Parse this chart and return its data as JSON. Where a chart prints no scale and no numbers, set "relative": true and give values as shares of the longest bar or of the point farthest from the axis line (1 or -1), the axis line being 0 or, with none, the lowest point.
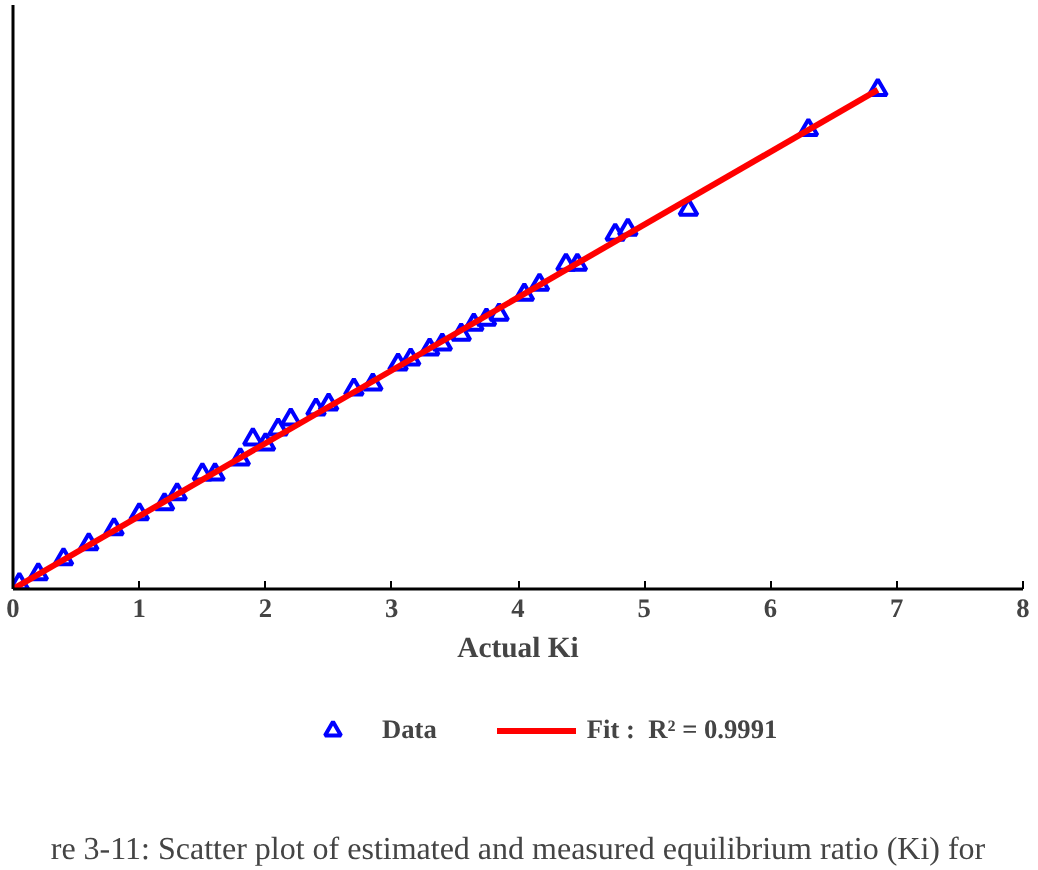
{
  "chart_data": {
    "type": "scatter",
    "xlabel": "Actual Ki",
    "relative": true,
    "xlim": [
      0,
      8
    ],
    "xticks": [
      0,
      1,
      2,
      3,
      4,
      5,
      6,
      7,
      8
    ],
    "tick_labels": "x",
    "grid": false,
    "legend": "bottom",
    "marker": "triangle",
    "series": [
      {
        "name": "Data",
        "color": "#0000ff",
        "x": [
          0.05,
          0.2,
          0.4,
          0.6,
          0.8,
          1.0,
          1.2,
          1.3,
          1.5,
          1.6,
          1.8,
          1.9,
          2.0,
          2.1,
          2.2,
          2.4,
          2.5,
          2.7,
          2.85,
          3.05,
          3.15,
          3.3,
          3.4,
          3.55,
          3.65,
          3.75,
          3.85,
          4.05,
          4.17,
          4.38,
          4.47,
          4.77,
          4.87,
          5.35,
          6.3,
          6.85
        ],
        "values": [
          0.01,
          0.03,
          0.06,
          0.09,
          0.12,
          0.15,
          0.17,
          0.19,
          0.23,
          0.23,
          0.26,
          0.3,
          0.29,
          0.32,
          0.34,
          0.36,
          0.37,
          0.4,
          0.41,
          0.45,
          0.46,
          0.48,
          0.49,
          0.51,
          0.53,
          0.54,
          0.55,
          0.59,
          0.61,
          0.65,
          0.65,
          0.71,
          0.72,
          0.76,
          0.92,
          1
        ]
      },
      {
        "name": "Fit :  R² = 0.9991",
        "type": "line",
        "color": "#ff0000",
        "marker": "none",
        "x": [
          0,
          6.85
        ],
        "values": [
          0,
          1
        ]
      }
    ],
    "annotations": [
      "re 3-11: Scatter plot of estimated and measured equilibrium ratio (Ki) for"
    ]
  }
}
